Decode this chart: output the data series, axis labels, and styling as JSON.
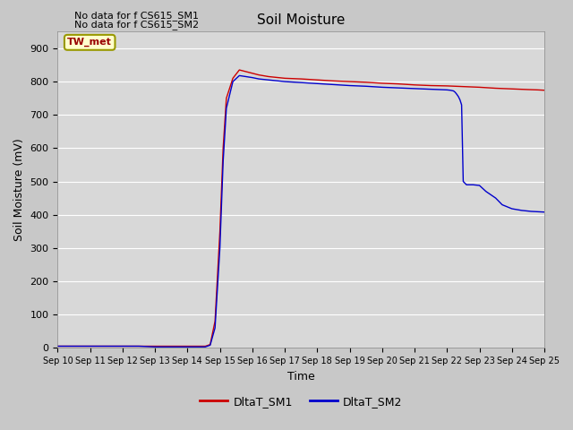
{
  "title": "Soil Moisture",
  "xlabel": "Time",
  "ylabel": "Soil Moisture (mV)",
  "ylim": [
    0,
    950
  ],
  "yticks": [
    0,
    100,
    200,
    300,
    400,
    500,
    600,
    700,
    800,
    900
  ],
  "fig_bg_color": "#c8c8c8",
  "plot_bg_color": "#d8d8d8",
  "annotations": [
    "No data for f CS615_SM1",
    "No data for f CS615_SM2"
  ],
  "tw_met_label": "TW_met",
  "legend_entries": [
    "DltaT_SM1",
    "DltaT_SM2"
  ],
  "sm1_color": "#cc0000",
  "sm2_color": "#0000cc",
  "dates": [
    10,
    11,
    12,
    13,
    14,
    15,
    16,
    17,
    18,
    19,
    20,
    21,
    22,
    23,
    24,
    25
  ],
  "sm1_data_x": [
    10.0,
    10.2,
    10.5,
    11.0,
    11.5,
    12.0,
    12.5,
    13.0,
    13.5,
    13.8,
    14.0,
    14.2,
    14.4,
    14.55,
    14.7,
    14.85,
    15.0,
    15.1,
    15.2,
    15.4,
    15.6,
    15.8,
    16.0,
    16.2,
    16.5,
    17.0,
    17.5,
    18.0,
    18.5,
    19.0,
    19.5,
    20.0,
    20.5,
    21.0,
    21.5,
    22.0,
    22.5,
    23.0,
    23.5,
    24.0,
    24.5,
    24.8,
    25.0
  ],
  "sm1_data_y": [
    5,
    5,
    5,
    5,
    5,
    5,
    5,
    5,
    5,
    5,
    5,
    5,
    5,
    5,
    10,
    80,
    350,
    600,
    750,
    810,
    835,
    830,
    825,
    820,
    815,
    810,
    808,
    805,
    802,
    800,
    798,
    795,
    793,
    790,
    788,
    787,
    785,
    783,
    780,
    778,
    776,
    775,
    774
  ],
  "sm2_data_x": [
    10.0,
    10.2,
    10.5,
    11.0,
    11.5,
    12.0,
    12.5,
    13.0,
    13.5,
    13.8,
    14.0,
    14.2,
    14.4,
    14.55,
    14.7,
    14.85,
    15.0,
    15.1,
    15.2,
    15.4,
    15.6,
    15.8,
    16.0,
    16.2,
    16.5,
    17.0,
    17.5,
    18.0,
    18.5,
    19.0,
    19.5,
    20.0,
    20.5,
    21.0,
    21.5,
    22.0,
    22.1,
    22.2,
    22.25,
    22.3,
    22.35,
    22.4,
    22.45,
    22.5,
    22.6,
    22.7,
    22.8,
    23.0,
    23.2,
    23.5,
    23.7,
    24.0,
    24.3,
    24.6,
    25.0
  ],
  "sm2_data_y": [
    5,
    5,
    5,
    5,
    5,
    5,
    5,
    3,
    3,
    3,
    3,
    3,
    3,
    3,
    8,
    60,
    300,
    560,
    720,
    800,
    818,
    815,
    812,
    808,
    805,
    800,
    797,
    794,
    791,
    788,
    786,
    783,
    781,
    779,
    777,
    775,
    774,
    772,
    768,
    762,
    755,
    745,
    730,
    500,
    490,
    490,
    490,
    488,
    470,
    450,
    430,
    418,
    413,
    410,
    408
  ]
}
